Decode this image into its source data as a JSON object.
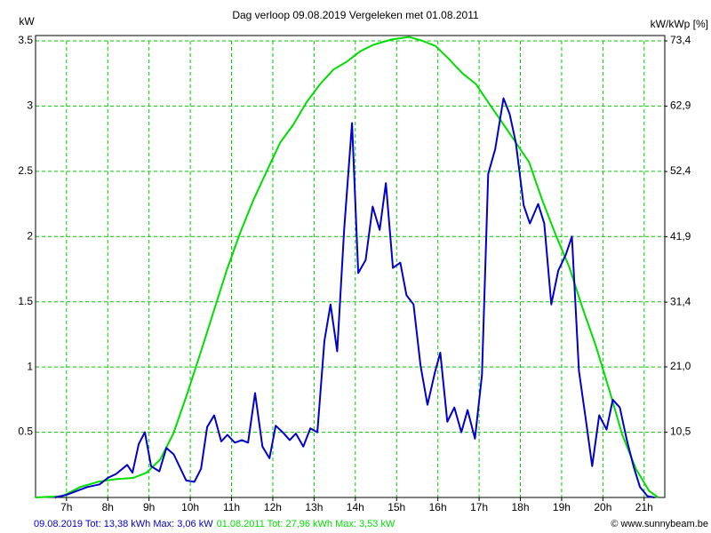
{
  "chart_data": {
    "type": "line",
    "title": "Dag  verloop 09.08.2019   Vergeleken met 01.08.2011",
    "y_label": "kW",
    "y2_label": "kW/kWp [%]",
    "source": "© www.sunnybeam.be",
    "xlim": [
      6.25,
      21.5
    ],
    "xticks": [
      {
        "value": 7,
        "label": "7h"
      },
      {
        "value": 8,
        "label": "8h"
      },
      {
        "value": 9,
        "label": "9h"
      },
      {
        "value": 10,
        "label": "10h"
      },
      {
        "value": 11,
        "label": "11h"
      },
      {
        "value": 12,
        "label": "12h"
      },
      {
        "value": 13,
        "label": "13h"
      },
      {
        "value": 14,
        "label": "14h"
      },
      {
        "value": 15,
        "label": "15h"
      },
      {
        "value": 16,
        "label": "16h"
      },
      {
        "value": 17,
        "label": "17h"
      },
      {
        "value": 18,
        "label": "18h"
      },
      {
        "value": 19,
        "label": "19h"
      },
      {
        "value": 20,
        "label": "20h"
      },
      {
        "value": 21,
        "label": "21h"
      }
    ],
    "ylim": [
      0,
      3.5
    ],
    "yticks": [
      0.5,
      1,
      1.5,
      2,
      2.5,
      3,
      3.5
    ],
    "y2lim": [
      0,
      73.4
    ],
    "y2ticks": [
      {
        "value": 10.5,
        "label": "10,5"
      },
      {
        "value": 21.0,
        "label": "21,0"
      },
      {
        "value": 31.4,
        "label": "31,4"
      },
      {
        "value": 41.9,
        "label": "41,9"
      },
      {
        "value": 52.4,
        "label": "52,4"
      },
      {
        "value": 62.9,
        "label": "62,9"
      },
      {
        "value": 73.4,
        "label": "73,4"
      }
    ],
    "grid": true,
    "grid_color": "#00cc00",
    "series": [
      {
        "name": "09.08.2019 Tot: 13,38 kWh Max: 3,06 kW",
        "color": "#0000cc",
        "x": [
          6.72,
          7.0,
          7.5,
          7.8,
          8.0,
          8.2,
          8.47,
          8.6,
          8.75,
          8.9,
          9.05,
          9.25,
          9.42,
          9.6,
          9.9,
          10.1,
          10.26,
          10.41,
          10.58,
          10.75,
          10.9,
          11.08,
          11.25,
          11.4,
          11.57,
          11.75,
          11.92,
          12.07,
          12.24,
          12.41,
          12.56,
          12.74,
          12.91,
          13.08,
          13.25,
          13.4,
          13.56,
          13.73,
          13.92,
          14.07,
          14.25,
          14.42,
          14.59,
          14.74,
          14.91,
          15.09,
          15.24,
          15.41,
          15.58,
          15.75,
          15.93,
          16.06,
          16.23,
          16.4,
          16.57,
          16.72,
          16.9,
          17.07,
          17.22,
          17.39,
          17.59,
          17.74,
          17.89,
          18.08,
          18.23,
          18.43,
          18.58,
          18.75,
          18.92,
          19.1,
          19.25,
          19.42,
          19.59,
          19.74,
          19.91,
          20.09,
          20.24,
          20.41,
          20.58,
          20.75,
          20.9,
          21.08,
          21.25
        ],
        "values": [
          0,
          0.02,
          0.08,
          0.1,
          0.15,
          0.18,
          0.25,
          0.19,
          0.41,
          0.5,
          0.24,
          0.2,
          0.38,
          0.33,
          0.13,
          0.12,
          0.22,
          0.54,
          0.63,
          0.43,
          0.48,
          0.42,
          0.44,
          0.42,
          0.8,
          0.39,
          0.3,
          0.55,
          0.5,
          0.44,
          0.49,
          0.39,
          0.53,
          0.5,
          1.2,
          1.48,
          1.12,
          2.06,
          2.87,
          1.72,
          1.82,
          2.23,
          2.05,
          2.41,
          1.76,
          1.8,
          1.55,
          1.48,
          1.01,
          0.71,
          0.96,
          1.11,
          0.58,
          0.69,
          0.5,
          0.67,
          0.45,
          0.94,
          2.48,
          2.67,
          3.06,
          2.94,
          2.72,
          2.24,
          2.1,
          2.25,
          2.1,
          1.48,
          1.74,
          1.86,
          2.0,
          0.97,
          0.59,
          0.24,
          0.63,
          0.52,
          0.75,
          0.69,
          0.44,
          0.23,
          0.08,
          0.01,
          0
        ]
      },
      {
        "name": "01.08.2011 Tot: 27,96 kWh Max: 3,53 kW",
        "color": "#00dd00",
        "x": [
          6.25,
          6.9,
          7.33,
          7.76,
          8.19,
          8.62,
          8.94,
          9.27,
          9.59,
          9.91,
          10.24,
          10.56,
          10.88,
          11.21,
          11.53,
          11.85,
          12.18,
          12.5,
          12.82,
          13.15,
          13.47,
          13.79,
          14.12,
          14.44,
          14.87,
          15.3,
          15.63,
          15.95,
          16.27,
          16.6,
          16.92,
          17.24,
          17.57,
          17.89,
          18.21,
          18.53,
          18.86,
          19.18,
          19.5,
          19.83,
          20.15,
          20.47,
          20.8,
          21.12,
          21.34
        ],
        "values": [
          0,
          0.01,
          0.08,
          0.12,
          0.14,
          0.15,
          0.19,
          0.29,
          0.49,
          0.78,
          1.1,
          1.42,
          1.74,
          2.03,
          2.28,
          2.5,
          2.72,
          2.86,
          3.03,
          3.17,
          3.28,
          3.34,
          3.42,
          3.47,
          3.51,
          3.53,
          3.5,
          3.46,
          3.36,
          3.25,
          3.17,
          3.02,
          2.87,
          2.72,
          2.57,
          2.28,
          2.01,
          1.77,
          1.46,
          1.16,
          0.83,
          0.48,
          0.22,
          0.05,
          0
        ]
      }
    ]
  }
}
